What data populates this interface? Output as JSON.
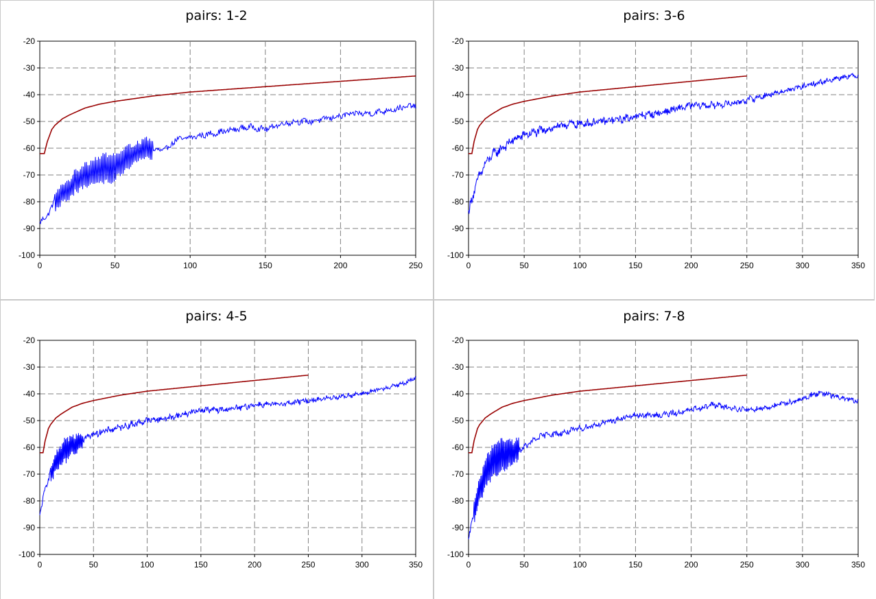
{
  "charts": [
    {
      "title": "pairs: 1-2",
      "chart_data": {
        "type": "line",
        "title": "pairs: 1-2",
        "xlim": [
          0,
          250
        ],
        "ylim": [
          -100,
          -20
        ],
        "xticks": [
          0,
          50,
          100,
          150,
          200,
          250
        ],
        "yticks": [
          -20,
          -30,
          -40,
          -50,
          -60,
          -70,
          -80,
          -90,
          -100
        ],
        "grid": true,
        "series": [
          {
            "color": "#990000",
            "kind": "limit",
            "x_end": 250,
            "values": [
              [
                0,
                -62
              ],
              [
                3,
                -62
              ],
              [
                5,
                -57.5
              ],
              [
                8,
                -53
              ],
              [
                10,
                -51.5
              ],
              [
                15,
                -49
              ],
              [
                20,
                -47.5
              ],
              [
                30,
                -45
              ],
              [
                40,
                -43.5
              ],
              [
                50,
                -42.5
              ],
              [
                75,
                -40.5
              ],
              [
                100,
                -39
              ],
              [
                125,
                -38
              ],
              [
                150,
                -37
              ],
              [
                175,
                -36
              ],
              [
                200,
                -35
              ],
              [
                225,
                -34
              ],
              [
                250,
                -33
              ]
            ]
          },
          {
            "color": "#0000ff",
            "kind": "measured",
            "x_end": 250,
            "values": [
              [
                0,
                -88
              ],
              [
                5,
                -85
              ],
              [
                10,
                -80
              ],
              [
                15,
                -77
              ],
              [
                20,
                -75
              ],
              [
                25,
                -72
              ],
              [
                30,
                -70
              ],
              [
                40,
                -68
              ],
              [
                50,
                -67
              ],
              [
                60,
                -63
              ],
              [
                70,
                -60
              ],
              [
                80,
                -61
              ],
              [
                85,
                -60
              ],
              [
                90,
                -57
              ],
              [
                100,
                -56
              ],
              [
                110,
                -55
              ],
              [
                120,
                -54
              ],
              [
                130,
                -53
              ],
              [
                140,
                -52
              ],
              [
                150,
                -53
              ],
              [
                160,
                -51
              ],
              [
                170,
                -50
              ],
              [
                180,
                -50
              ],
              [
                190,
                -49
              ],
              [
                200,
                -48
              ],
              [
                210,
                -47
              ],
              [
                220,
                -47
              ],
              [
                230,
                -46
              ],
              [
                240,
                -45
              ],
              [
                250,
                -44
              ]
            ],
            "noise_start": 1.0,
            "noise_end": 1.0,
            "osc": [
              [
                10,
                75,
                5
              ]
            ]
          }
        ]
      }
    },
    {
      "title": "pairs: 3-6",
      "chart_data": {
        "type": "line",
        "title": "pairs: 3-6",
        "xlim": [
          0,
          350
        ],
        "ylim": [
          -100,
          -20
        ],
        "xticks": [
          0,
          50,
          100,
          150,
          200,
          250,
          300,
          350
        ],
        "yticks": [
          -20,
          -30,
          -40,
          -50,
          -60,
          -70,
          -80,
          -90,
          -100
        ],
        "grid": true,
        "series": [
          {
            "color": "#990000",
            "kind": "limit",
            "x_end": 250,
            "values": [
              [
                0,
                -62
              ],
              [
                3,
                -62
              ],
              [
                5,
                -57.5
              ],
              [
                8,
                -53
              ],
              [
                10,
                -51.5
              ],
              [
                15,
                -49
              ],
              [
                20,
                -47.5
              ],
              [
                30,
                -45
              ],
              [
                40,
                -43.5
              ],
              [
                50,
                -42.5
              ],
              [
                75,
                -40.5
              ],
              [
                100,
                -39
              ],
              [
                125,
                -38
              ],
              [
                150,
                -37
              ],
              [
                175,
                -36
              ],
              [
                200,
                -35
              ],
              [
                225,
                -34
              ],
              [
                250,
                -33
              ]
            ]
          },
          {
            "color": "#0000ff",
            "kind": "measured",
            "x_end": 350,
            "values": [
              [
                0,
                -84
              ],
              [
                5,
                -76
              ],
              [
                10,
                -70
              ],
              [
                15,
                -66
              ],
              [
                20,
                -63
              ],
              [
                30,
                -60
              ],
              [
                40,
                -57
              ],
              [
                50,
                -55
              ],
              [
                60,
                -54
              ],
              [
                70,
                -53
              ],
              [
                80,
                -52
              ],
              [
                90,
                -51
              ],
              [
                100,
                -51
              ],
              [
                120,
                -50
              ],
              [
                140,
                -49
              ],
              [
                150,
                -48
              ],
              [
                170,
                -47
              ],
              [
                190,
                -45
              ],
              [
                200,
                -44
              ],
              [
                220,
                -44
              ],
              [
                240,
                -43
              ],
              [
                250,
                -42
              ],
              [
                270,
                -40
              ],
              [
                290,
                -38
              ],
              [
                300,
                -37
              ],
              [
                320,
                -35
              ],
              [
                340,
                -33
              ],
              [
                350,
                -33
              ]
            ],
            "noise_start": 1.6,
            "noise_end": 0.8,
            "osc": []
          }
        ]
      }
    },
    {
      "title": "pairs: 4-5",
      "chart_data": {
        "type": "line",
        "title": "pairs: 4-5",
        "xlim": [
          0,
          350
        ],
        "ylim": [
          -100,
          -20
        ],
        "xticks": [
          0,
          50,
          100,
          150,
          200,
          250,
          300,
          350
        ],
        "yticks": [
          -20,
          -30,
          -40,
          -50,
          -60,
          -70,
          -80,
          -90,
          -100
        ],
        "grid": true,
        "series": [
          {
            "color": "#990000",
            "kind": "limit",
            "x_end": 250,
            "values": [
              [
                0,
                -62
              ],
              [
                3,
                -62
              ],
              [
                5,
                -57.5
              ],
              [
                8,
                -53
              ],
              [
                10,
                -51.5
              ],
              [
                15,
                -49
              ],
              [
                20,
                -47.5
              ],
              [
                30,
                -45
              ],
              [
                40,
                -43.5
              ],
              [
                50,
                -42.5
              ],
              [
                75,
                -40.5
              ],
              [
                100,
                -39
              ],
              [
                125,
                -38
              ],
              [
                150,
                -37
              ],
              [
                175,
                -36
              ],
              [
                200,
                -35
              ],
              [
                225,
                -34
              ],
              [
                250,
                -33
              ]
            ]
          },
          {
            "color": "#0000ff",
            "kind": "measured",
            "x_end": 350,
            "values": [
              [
                0,
                -86
              ],
              [
                5,
                -75
              ],
              [
                10,
                -70
              ],
              [
                15,
                -66
              ],
              [
                20,
                -63
              ],
              [
                30,
                -59
              ],
              [
                40,
                -57
              ],
              [
                50,
                -55
              ],
              [
                60,
                -54
              ],
              [
                70,
                -53
              ],
              [
                80,
                -52
              ],
              [
                90,
                -51
              ],
              [
                100,
                -50
              ],
              [
                120,
                -49
              ],
              [
                140,
                -47
              ],
              [
                150,
                -46
              ],
              [
                170,
                -46
              ],
              [
                190,
                -45
              ],
              [
                200,
                -44
              ],
              [
                220,
                -44
              ],
              [
                240,
                -43
              ],
              [
                260,
                -42
              ],
              [
                280,
                -41
              ],
              [
                300,
                -40
              ],
              [
                320,
                -38
              ],
              [
                340,
                -36
              ],
              [
                350,
                -34
              ]
            ],
            "noise_start": 1.2,
            "noise_end": 0.7,
            "osc": [
              [
                10,
                40,
                4
              ]
            ]
          }
        ]
      }
    },
    {
      "title": "pairs: 7-8",
      "chart_data": {
        "type": "line",
        "title": "pairs: 7-8",
        "xlim": [
          0,
          350
        ],
        "ylim": [
          -100,
          -20
        ],
        "xticks": [
          0,
          50,
          100,
          150,
          200,
          250,
          300,
          350
        ],
        "yticks": [
          -20,
          -30,
          -40,
          -50,
          -60,
          -70,
          -80,
          -90,
          -100
        ],
        "grid": true,
        "series": [
          {
            "color": "#990000",
            "kind": "limit",
            "x_end": 250,
            "values": [
              [
                0,
                -62
              ],
              [
                3,
                -62
              ],
              [
                5,
                -57.5
              ],
              [
                8,
                -53
              ],
              [
                10,
                -51.5
              ],
              [
                15,
                -49
              ],
              [
                20,
                -47.5
              ],
              [
                30,
                -45
              ],
              [
                40,
                -43.5
              ],
              [
                50,
                -42.5
              ],
              [
                75,
                -40.5
              ],
              [
                100,
                -39
              ],
              [
                125,
                -38
              ],
              [
                150,
                -37
              ],
              [
                175,
                -36
              ],
              [
                200,
                -35
              ],
              [
                225,
                -34
              ],
              [
                250,
                -33
              ]
            ]
          },
          {
            "color": "#0000ff",
            "kind": "measured",
            "x_end": 350,
            "values": [
              [
                0,
                -95
              ],
              [
                3,
                -88
              ],
              [
                6,
                -82
              ],
              [
                10,
                -76
              ],
              [
                15,
                -70
              ],
              [
                20,
                -66
              ],
              [
                30,
                -63
              ],
              [
                40,
                -62
              ],
              [
                50,
                -60
              ],
              [
                60,
                -57
              ],
              [
                70,
                -55
              ],
              [
                80,
                -55
              ],
              [
                90,
                -54
              ],
              [
                100,
                -53
              ],
              [
                110,
                -52
              ],
              [
                130,
                -50
              ],
              [
                150,
                -48
              ],
              [
                170,
                -48
              ],
              [
                190,
                -47
              ],
              [
                200,
                -46
              ],
              [
                210,
                -45
              ],
              [
                220,
                -44
              ],
              [
                230,
                -45
              ],
              [
                250,
                -46
              ],
              [
                270,
                -45
              ],
              [
                290,
                -43
              ],
              [
                300,
                -42
              ],
              [
                310,
                -40
              ],
              [
                320,
                -40
              ],
              [
                330,
                -41
              ],
              [
                340,
                -42
              ],
              [
                350,
                -43
              ]
            ],
            "noise_start": 1.0,
            "noise_end": 0.9,
            "osc": [
              [
                5,
                45,
                6
              ]
            ]
          }
        ]
      }
    }
  ]
}
